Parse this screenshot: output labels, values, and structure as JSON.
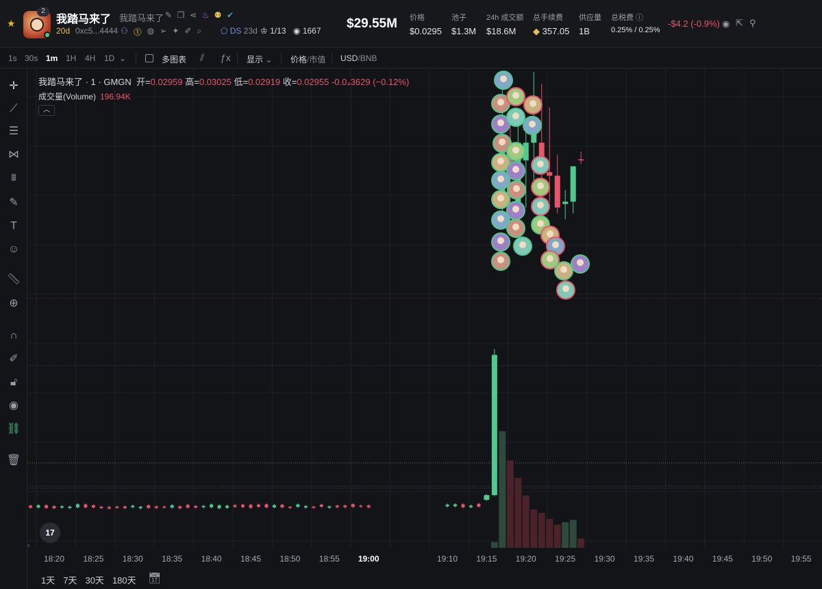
{
  "token": {
    "name": "我踏马来了",
    "subname": "我踏马来了",
    "avatar_badge": "2",
    "age": "20d",
    "address": "0xc5...4444",
    "ds_label": "DS",
    "ds_value": "23d",
    "holders": "1/13",
    "views": "1667"
  },
  "market_cap": "$29.55M",
  "stats": [
    {
      "label": "价格",
      "value": "$0.0295"
    },
    {
      "label": "池子",
      "value": "$1.3M"
    },
    {
      "label": "24h 成交额",
      "value": "$18.6M"
    },
    {
      "label": "总手续费",
      "value": "357.05"
    },
    {
      "label": "供应量",
      "value": "1B"
    },
    {
      "label": "总税费",
      "value": "0.25% / 0.25%"
    }
  ],
  "change": "-$4.2 (-0.9%)",
  "toolbar": {
    "timeframes": [
      "1s",
      "30s",
      "1m",
      "1H",
      "4H",
      "1D"
    ],
    "active_timeframe": "1m",
    "multi_chart": "多图表",
    "display": "显示",
    "price_label": "价格",
    "mcap_label": "市值",
    "usd_label": "USD",
    "bnb_label": "BNB"
  },
  "legend": {
    "symbol": "我踏马来了 · 1 · GMGN",
    "open_label": "开",
    "open": "0.02959",
    "high_label": "高",
    "high": "0.03025",
    "low_label": "低",
    "low": "0.02919",
    "close_label": "收",
    "close": "0.02955",
    "chg": "-0.0₄3629 (−0.12%)",
    "volume_label": "成交量(Volume)",
    "volume": "196.94K"
  },
  "time_labels": [
    "18:20",
    "18:25",
    "18:30",
    "18:35",
    "18:40",
    "18:45",
    "18:50",
    "18:55",
    "19:00",
    "19:10",
    "19:15",
    "19:20",
    "19:25",
    "19:30",
    "19:35",
    "19:40",
    "19:45",
    "19:50",
    "19:55"
  ],
  "ranges": [
    "1天",
    "7天",
    "30天",
    "180天"
  ],
  "tv_logo": "17",
  "colors": {
    "up": "#4fc98d",
    "down": "#e5566a",
    "background": "#131418",
    "accent_gold": "#e5c04d"
  },
  "chart_data": {
    "type": "candlestick",
    "interval": "1m",
    "title": "我踏马来了 · 1 · GMGN",
    "x_start": "18:16",
    "x_end": "19:57",
    "ylim": [
      0.0,
      0.038
    ],
    "y_scale": "linear",
    "series": [
      {
        "name": "candles",
        "note": "flat pre-launch period 18:16-19:16 around 0.0003-0.0005, then pump",
        "ohlc": [
          {
            "t": "19:15",
            "o": 0.0007,
            "h": 0.0012,
            "c": 0.0011,
            "l": 0.0006
          },
          {
            "t": "19:16",
            "o": 0.0011,
            "h": 0.0135,
            "c": 0.013,
            "l": 0.001
          },
          {
            "t": "19:17",
            "o": 0.0265,
            "h": 0.037,
            "c": 0.031,
            "l": 0.024
          },
          {
            "t": "19:18",
            "o": 0.031,
            "h": 0.0335,
            "c": 0.028,
            "l": 0.0255
          },
          {
            "t": "19:19",
            "o": 0.025,
            "h": 0.033,
            "c": 0.031,
            "l": 0.023
          },
          {
            "t": "19:20",
            "o": 0.0295,
            "h": 0.033,
            "c": 0.031,
            "l": 0.0255
          },
          {
            "t": "19:21",
            "o": 0.031,
            "h": 0.037,
            "c": 0.033,
            "l": 0.027
          },
          {
            "t": "19:22",
            "o": 0.031,
            "h": 0.036,
            "c": 0.0285,
            "l": 0.026
          },
          {
            "t": "19:23",
            "o": 0.0285,
            "h": 0.034,
            "c": 0.0282,
            "l": 0.026
          },
          {
            "t": "19:24",
            "o": 0.0282,
            "h": 0.03,
            "c": 0.0255,
            "l": 0.025
          },
          {
            "t": "19:25",
            "o": 0.0258,
            "h": 0.027,
            "c": 0.026,
            "l": 0.0245
          },
          {
            "t": "19:26",
            "o": 0.026,
            "h": 0.029,
            "c": 0.029,
            "l": 0.025
          },
          {
            "t": "19:27",
            "o": 0.02959,
            "h": 0.03025,
            "c": 0.02955,
            "l": 0.02919
          }
        ]
      },
      {
        "name": "成交量(Volume)",
        "note": "volume bars, peak near 19:17",
        "volume": [
          {
            "t": "19:16",
            "v": 0.05
          },
          {
            "t": "19:17",
            "v": 1.0
          },
          {
            "t": "19:18",
            "v": 0.75
          },
          {
            "t": "19:19",
            "v": 0.6
          },
          {
            "t": "19:20",
            "v": 0.45
          },
          {
            "t": "19:21",
            "v": 0.33
          },
          {
            "t": "19:22",
            "v": 0.3
          },
          {
            "t": "19:23",
            "v": 0.25
          },
          {
            "t": "19:24",
            "v": 0.2
          },
          {
            "t": "19:25",
            "v": 0.22
          },
          {
            "t": "19:26",
            "v": 0.24
          },
          {
            "t": "19:27",
            "v": 0.08
          }
        ]
      }
    ],
    "grid": true
  }
}
